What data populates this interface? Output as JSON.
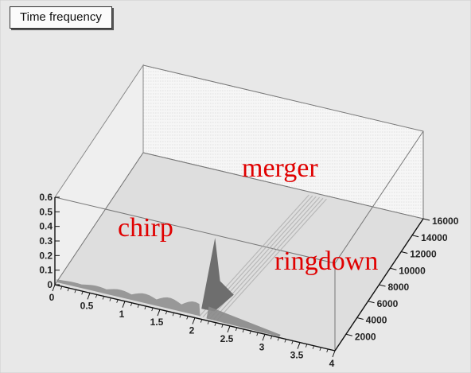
{
  "title": "Time frequency",
  "chart_data": {
    "type": "surface3d",
    "title": "Time frequency",
    "x_axis": {
      "ticks": [
        "0",
        "0.5",
        "1",
        "1.5",
        "2",
        "2.5",
        "3",
        "3.5",
        "4"
      ],
      "range": [
        0,
        4
      ]
    },
    "y_axis": {
      "ticks": [
        "2000",
        "4000",
        "6000",
        "8000",
        "10000",
        "12000",
        "14000",
        "16000"
      ],
      "range": [
        0,
        16000
      ]
    },
    "z_axis": {
      "ticks": [
        "0",
        "0.1",
        "0.2",
        "0.3",
        "0.4",
        "0.5",
        "0.6"
      ],
      "range": [
        0,
        0.6
      ]
    },
    "annotations": [
      "chirp",
      "merger",
      "ringdown"
    ],
    "annotation_color": "#e00000",
    "peak": {
      "x": 2.15,
      "y": 2000,
      "z": 0.45
    },
    "grid": false
  }
}
